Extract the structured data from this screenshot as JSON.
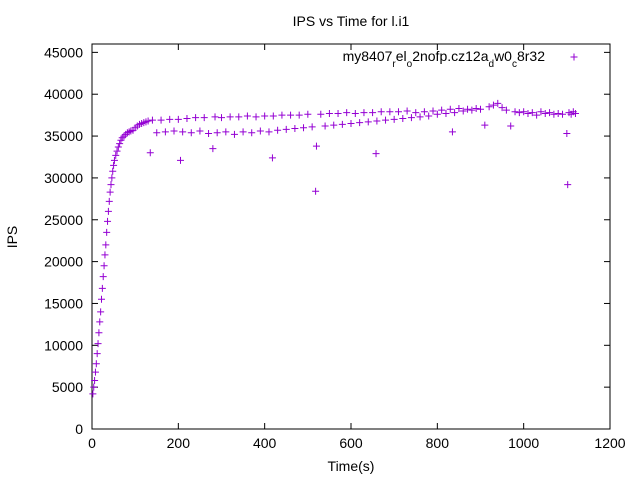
{
  "chart_data": {
    "type": "scatter",
    "title": "IPS vs Time for l.i1",
    "xlabel": "Time(s)",
    "ylabel": "IPS",
    "xlim": [
      0,
      1200
    ],
    "ylim": [
      0,
      46000
    ],
    "xticks": [
      0,
      200,
      400,
      600,
      800,
      1000,
      1200
    ],
    "yticks": [
      0,
      5000,
      10000,
      15000,
      20000,
      25000,
      30000,
      35000,
      40000,
      45000
    ],
    "grid": false,
    "legend_position": "top-right",
    "series": [
      {
        "name": "my8407_rel_o2nofp.cz12a_dw0_c8r32",
        "legend_parts": [
          {
            "t": "my8407",
            "sub": false
          },
          {
            "t": "r",
            "sub": true
          },
          {
            "t": "el",
            "sub": false
          },
          {
            "t": "o",
            "sub": true
          },
          {
            "t": "2nofp.cz12a",
            "sub": false
          },
          {
            "t": "d",
            "sub": true
          },
          {
            "t": "w0",
            "sub": false
          },
          {
            "t": "c",
            "sub": true
          },
          {
            "t": "8r32",
            "sub": false
          }
        ],
        "color": "#9400d3",
        "marker": "+",
        "points": [
          [
            2,
            4200
          ],
          [
            4,
            5000
          ],
          [
            6,
            5800
          ],
          [
            8,
            6800
          ],
          [
            10,
            7800
          ],
          [
            12,
            9000
          ],
          [
            14,
            10200
          ],
          [
            16,
            11500
          ],
          [
            18,
            12800
          ],
          [
            20,
            14000
          ],
          [
            22,
            15500
          ],
          [
            24,
            16800
          ],
          [
            26,
            18200
          ],
          [
            28,
            19500
          ],
          [
            30,
            20800
          ],
          [
            32,
            22000
          ],
          [
            34,
            23500
          ],
          [
            36,
            24800
          ],
          [
            38,
            26000
          ],
          [
            40,
            27200
          ],
          [
            42,
            28300
          ],
          [
            44,
            29200
          ],
          [
            46,
            30000
          ],
          [
            48,
            30800
          ],
          [
            50,
            31500
          ],
          [
            52,
            32100
          ],
          [
            55,
            32700
          ],
          [
            58,
            33200
          ],
          [
            61,
            33700
          ],
          [
            64,
            34100
          ],
          [
            67,
            34500
          ],
          [
            70,
            34800
          ],
          [
            74,
            35000
          ],
          [
            78,
            35200
          ],
          [
            82,
            35400
          ],
          [
            86,
            35500
          ],
          [
            90,
            35600
          ],
          [
            95,
            35700
          ],
          [
            100,
            36000
          ],
          [
            105,
            36200
          ],
          [
            110,
            36400
          ],
          [
            115,
            36500
          ],
          [
            120,
            36600
          ],
          [
            125,
            36700
          ],
          [
            130,
            36800
          ],
          [
            135,
            33000
          ],
          [
            140,
            36900
          ],
          [
            150,
            35400
          ],
          [
            160,
            36900
          ],
          [
            170,
            35500
          ],
          [
            180,
            37000
          ],
          [
            190,
            35600
          ],
          [
            200,
            37000
          ],
          [
            205,
            32100
          ],
          [
            210,
            35500
          ],
          [
            220,
            37100
          ],
          [
            230,
            35400
          ],
          [
            240,
            37200
          ],
          [
            250,
            35600
          ],
          [
            260,
            37200
          ],
          [
            270,
            35300
          ],
          [
            280,
            33500
          ],
          [
            285,
            37300
          ],
          [
            290,
            35400
          ],
          [
            300,
            37200
          ],
          [
            310,
            35500
          ],
          [
            320,
            37300
          ],
          [
            330,
            35200
          ],
          [
            340,
            37300
          ],
          [
            350,
            35500
          ],
          [
            360,
            37400
          ],
          [
            370,
            35400
          ],
          [
            380,
            37300
          ],
          [
            390,
            35600
          ],
          [
            400,
            37400
          ],
          [
            410,
            35500
          ],
          [
            418,
            32400
          ],
          [
            420,
            37400
          ],
          [
            430,
            35700
          ],
          [
            440,
            37500
          ],
          [
            450,
            35800
          ],
          [
            460,
            37500
          ],
          [
            470,
            35900
          ],
          [
            480,
            37500
          ],
          [
            490,
            36000
          ],
          [
            500,
            37600
          ],
          [
            510,
            36100
          ],
          [
            518,
            28400
          ],
          [
            520,
            33800
          ],
          [
            530,
            37600
          ],
          [
            540,
            36200
          ],
          [
            550,
            37700
          ],
          [
            560,
            36300
          ],
          [
            570,
            37700
          ],
          [
            580,
            36400
          ],
          [
            590,
            37800
          ],
          [
            600,
            36500
          ],
          [
            610,
            37700
          ],
          [
            620,
            36600
          ],
          [
            630,
            37800
          ],
          [
            640,
            36700
          ],
          [
            650,
            37800
          ],
          [
            658,
            32900
          ],
          [
            660,
            36800
          ],
          [
            670,
            37900
          ],
          [
            680,
            36900
          ],
          [
            690,
            37900
          ],
          [
            700,
            37000
          ],
          [
            710,
            37900
          ],
          [
            720,
            37100
          ],
          [
            730,
            38000
          ],
          [
            740,
            37200
          ],
          [
            750,
            37800
          ],
          [
            760,
            37300
          ],
          [
            770,
            37900
          ],
          [
            780,
            37400
          ],
          [
            790,
            38000
          ],
          [
            800,
            37600
          ],
          [
            810,
            38100
          ],
          [
            820,
            37700
          ],
          [
            830,
            38200
          ],
          [
            835,
            35500
          ],
          [
            840,
            37800
          ],
          [
            850,
            38300
          ],
          [
            860,
            38000
          ],
          [
            870,
            38200
          ],
          [
            880,
            38100
          ],
          [
            890,
            38300
          ],
          [
            900,
            38200
          ],
          [
            910,
            36300
          ],
          [
            920,
            38500
          ],
          [
            930,
            38700
          ],
          [
            940,
            38900
          ],
          [
            950,
            38400
          ],
          [
            960,
            38100
          ],
          [
            970,
            36200
          ],
          [
            980,
            37900
          ],
          [
            990,
            37800
          ],
          [
            1000,
            37900
          ],
          [
            1010,
            37700
          ],
          [
            1020,
            37800
          ],
          [
            1030,
            37500
          ],
          [
            1040,
            37900
          ],
          [
            1050,
            37700
          ],
          [
            1060,
            37800
          ],
          [
            1070,
            37600
          ],
          [
            1080,
            37700
          ],
          [
            1090,
            37600
          ],
          [
            1100,
            35300
          ],
          [
            1102,
            29200
          ],
          [
            1105,
            37800
          ],
          [
            1110,
            37600
          ],
          [
            1115,
            37900
          ],
          [
            1120,
            37700
          ]
        ]
      }
    ]
  }
}
